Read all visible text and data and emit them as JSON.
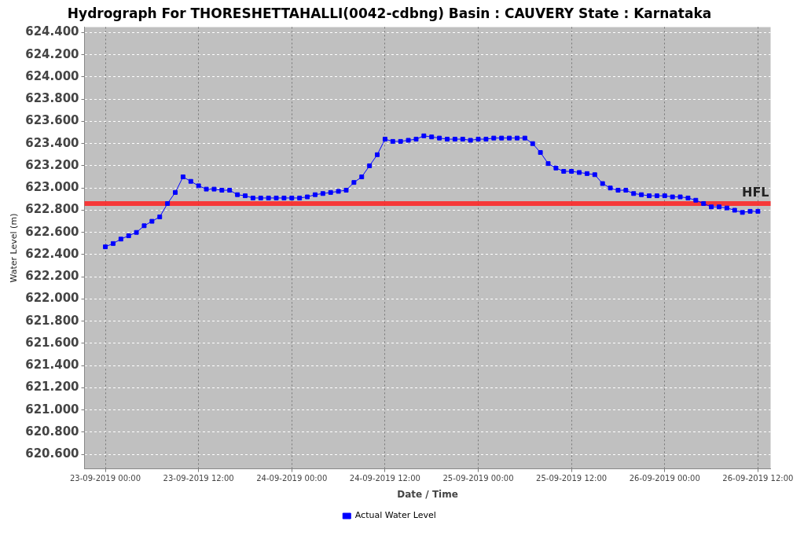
{
  "chart_data": {
    "type": "line",
    "title": "Hydrograph For THORESHETTAHALLI(0042-cdbng) Basin : CAUVERY State : Karnataka",
    "xlabel": "Date / Time",
    "ylabel": "Water Level (m)",
    "x": [
      "2019-09-23T00:00",
      "2019-09-23T01:00",
      "2019-09-23T02:00",
      "2019-09-23T03:00",
      "2019-09-23T04:00",
      "2019-09-23T05:00",
      "2019-09-23T06:00",
      "2019-09-23T07:00",
      "2019-09-23T08:00",
      "2019-09-23T09:00",
      "2019-09-23T10:00",
      "2019-09-23T11:00",
      "2019-09-23T12:00",
      "2019-09-23T13:00",
      "2019-09-23T14:00",
      "2019-09-23T15:00",
      "2019-09-23T16:00",
      "2019-09-23T17:00",
      "2019-09-23T18:00",
      "2019-09-23T19:00",
      "2019-09-23T20:00",
      "2019-09-23T21:00",
      "2019-09-23T22:00",
      "2019-09-23T23:00",
      "2019-09-24T00:00",
      "2019-09-24T01:00",
      "2019-09-24T02:00",
      "2019-09-24T03:00",
      "2019-09-24T04:00",
      "2019-09-24T05:00",
      "2019-09-24T06:00",
      "2019-09-24T07:00",
      "2019-09-24T08:00",
      "2019-09-24T09:00",
      "2019-09-24T10:00",
      "2019-09-24T11:00",
      "2019-09-24T12:00",
      "2019-09-24T13:00",
      "2019-09-24T14:00",
      "2019-09-24T15:00",
      "2019-09-24T16:00",
      "2019-09-24T17:00",
      "2019-09-24T18:00",
      "2019-09-24T19:00",
      "2019-09-24T20:00",
      "2019-09-24T21:00",
      "2019-09-24T22:00",
      "2019-09-24T23:00",
      "2019-09-25T00:00",
      "2019-09-25T01:00",
      "2019-09-25T02:00",
      "2019-09-25T03:00",
      "2019-09-25T04:00",
      "2019-09-25T05:00",
      "2019-09-25T06:00",
      "2019-09-25T07:00",
      "2019-09-25T08:00",
      "2019-09-25T09:00",
      "2019-09-25T10:00",
      "2019-09-25T11:00",
      "2019-09-25T12:00",
      "2019-09-25T13:00",
      "2019-09-25T14:00",
      "2019-09-25T15:00",
      "2019-09-25T16:00",
      "2019-09-25T17:00",
      "2019-09-25T18:00",
      "2019-09-25T19:00",
      "2019-09-25T20:00",
      "2019-09-25T21:00",
      "2019-09-25T22:00",
      "2019-09-25T23:00",
      "2019-09-26T00:00",
      "2019-09-26T01:00",
      "2019-09-26T02:00",
      "2019-09-26T03:00",
      "2019-09-26T04:00",
      "2019-09-26T05:00",
      "2019-09-26T06:00",
      "2019-09-26T07:00",
      "2019-09-26T08:00",
      "2019-09-26T09:00",
      "2019-09-26T10:00",
      "2019-09-26T11:00",
      "2019-09-26T12:00"
    ],
    "series": [
      {
        "name": "Actual Water Level",
        "color": "#0000ff",
        "values": [
          622.47,
          622.5,
          622.54,
          622.57,
          622.6,
          622.66,
          622.7,
          622.74,
          622.86,
          622.96,
          623.1,
          623.06,
          623.02,
          622.99,
          622.99,
          622.98,
          622.98,
          622.94,
          622.93,
          622.91,
          622.91,
          622.91,
          622.91,
          622.91,
          622.91,
          622.91,
          622.92,
          622.94,
          622.95,
          622.96,
          622.97,
          622.98,
          623.05,
          623.1,
          623.2,
          623.3,
          623.44,
          623.42,
          623.42,
          623.43,
          623.44,
          623.47,
          623.46,
          623.45,
          623.44,
          623.44,
          623.44,
          623.43,
          623.44,
          623.44,
          623.45,
          623.45,
          623.45,
          623.45,
          623.45,
          623.4,
          623.32,
          623.22,
          623.18,
          623.15,
          623.15,
          623.14,
          623.13,
          623.12,
          623.04,
          623.0,
          622.98,
          622.98,
          622.95,
          622.94,
          622.93,
          622.93,
          622.93,
          622.92,
          622.92,
          622.91,
          622.89,
          622.86,
          622.83,
          622.83,
          622.82,
          622.8,
          622.78,
          622.79,
          622.79
        ]
      }
    ],
    "xlim": [
      "2019-09-22T21:19",
      "2019-09-26T13:38"
    ],
    "xticks": [
      {
        "value": "2019-09-23T00:00",
        "label": "23-09-2019 00:00"
      },
      {
        "value": "2019-09-23T12:00",
        "label": "23-09-2019 12:00"
      },
      {
        "value": "2019-09-24T00:00",
        "label": "24-09-2019 00:00"
      },
      {
        "value": "2019-09-24T12:00",
        "label": "24-09-2019 12:00"
      },
      {
        "value": "2019-09-25T00:00",
        "label": "25-09-2019 00:00"
      },
      {
        "value": "2019-09-25T12:00",
        "label": "25-09-2019 12:00"
      },
      {
        "value": "2019-09-26T00:00",
        "label": "26-09-2019 00:00"
      },
      {
        "value": "2019-09-26T12:00",
        "label": "26-09-2019 12:00"
      }
    ],
    "ylim": [
      620.47,
      624.45
    ],
    "yticks": [
      {
        "value": 620.6,
        "label": "620.600"
      },
      {
        "value": 620.8,
        "label": "620.800"
      },
      {
        "value": 621.0,
        "label": "621.000"
      },
      {
        "value": 621.2,
        "label": "621.200"
      },
      {
        "value": 621.4,
        "label": "621.400"
      },
      {
        "value": 621.6,
        "label": "621.600"
      },
      {
        "value": 621.8,
        "label": "621.800"
      },
      {
        "value": 622.0,
        "label": "622.000"
      },
      {
        "value": 622.2,
        "label": "622.200"
      },
      {
        "value": 622.4,
        "label": "622.400"
      },
      {
        "value": 622.6,
        "label": "622.600"
      },
      {
        "value": 622.8,
        "label": "622.800"
      },
      {
        "value": 623.0,
        "label": "623.000"
      },
      {
        "value": 623.2,
        "label": "623.200"
      },
      {
        "value": 623.4,
        "label": "623.400"
      },
      {
        "value": 623.6,
        "label": "623.600"
      },
      {
        "value": 623.8,
        "label": "623.800"
      },
      {
        "value": 624.0,
        "label": "624.000"
      },
      {
        "value": 624.2,
        "label": "624.200"
      },
      {
        "value": 624.4,
        "label": "624.400"
      }
    ],
    "ref_lines": [
      {
        "axis": "y",
        "value": 622.86,
        "label": "HFL",
        "color": "#ff2020"
      }
    ],
    "grid": true,
    "legend": "bottom",
    "marker": "square",
    "line_style": "solid"
  }
}
